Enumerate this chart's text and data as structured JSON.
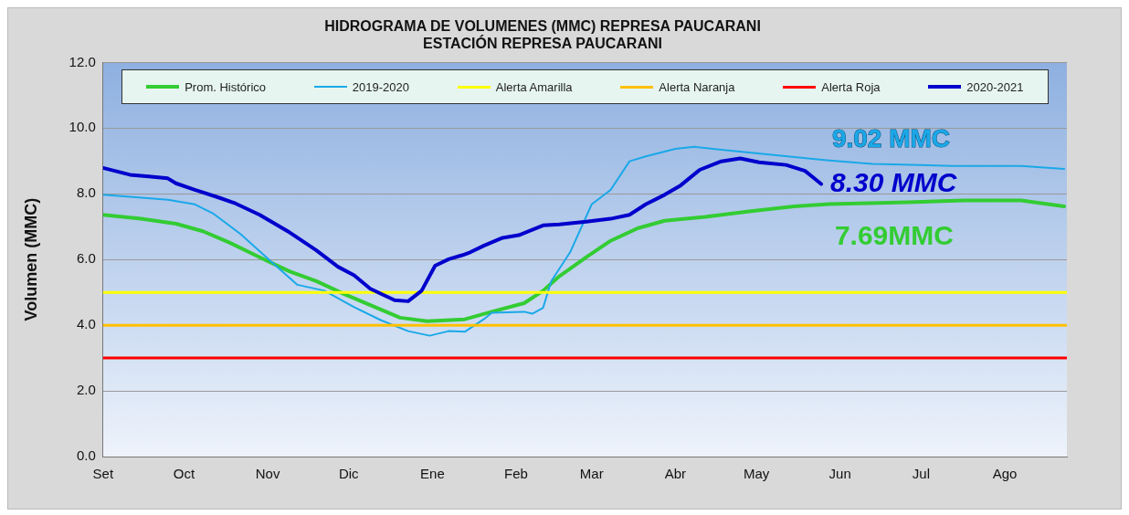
{
  "chart_data": {
    "type": "line",
    "title": "HIDROGRAMA DE VOLUMENES (MMC) REPRESA PAUCARANI\nESTACIÓN REPRESA PAUCARANI",
    "ylabel": "Volumen (MMC)",
    "xlim": [
      "2020-09-01",
      "2021-08-24"
    ],
    "xticks": [
      {
        "value": "2020-09-01",
        "label": "Set"
      },
      {
        "value": "2020-10-01",
        "label": "Oct"
      },
      {
        "value": "2020-11-01",
        "label": "Nov"
      },
      {
        "value": "2020-12-01",
        "label": "Dic"
      },
      {
        "value": "2021-01-01",
        "label": "Ene"
      },
      {
        "value": "2021-02-01",
        "label": "Feb"
      },
      {
        "value": "2021-03-01",
        "label": "Mar"
      },
      {
        "value": "2021-04-01",
        "label": "Abr"
      },
      {
        "value": "2021-05-01",
        "label": "May"
      },
      {
        "value": "2021-06-01",
        "label": "Jun"
      },
      {
        "value": "2021-07-01",
        "label": "Jul"
      },
      {
        "value": "2021-08-01",
        "label": "Ago"
      }
    ],
    "ylim": [
      0,
      12
    ],
    "yticks": [
      {
        "value": 0,
        "label": "0.0"
      },
      {
        "value": 2,
        "label": "2.0"
      },
      {
        "value": 4,
        "label": "4.0"
      },
      {
        "value": 6,
        "label": "6.0"
      },
      {
        "value": 8,
        "label": "8.0"
      },
      {
        "value": 10,
        "label": "10.0"
      },
      {
        "value": 12,
        "label": "12.0"
      }
    ],
    "grid": "y",
    "legend": "top",
    "marker": "none",
    "line_style": "solid",
    "series": [
      {
        "name": "Prom. Histórico",
        "color": "#33cc33",
        "x": [
          "2020-09-01",
          "2020-09-15",
          "2020-09-28",
          "2020-10-08",
          "2020-10-18",
          "2020-10-29",
          "2020-11-09",
          "2020-11-19",
          "2020-11-29",
          "2020-12-09",
          "2020-12-20",
          "2020-12-30",
          "2021-01-13",
          "2021-01-23",
          "2021-02-04",
          "2021-02-11",
          "2021-02-17",
          "2021-02-27",
          "2021-03-08",
          "2021-03-18",
          "2021-03-28",
          "2021-04-12",
          "2021-04-29",
          "2021-05-15",
          "2021-05-28",
          "2021-06-26",
          "2021-07-17",
          "2021-08-07",
          "2021-08-23"
        ],
        "values": [
          7.36,
          7.24,
          7.09,
          6.86,
          6.51,
          6.07,
          5.64,
          5.34,
          4.96,
          4.61,
          4.23,
          4.12,
          4.18,
          4.41,
          4.67,
          5.05,
          5.49,
          6.07,
          6.57,
          6.95,
          7.18,
          7.3,
          7.47,
          7.62,
          7.69,
          7.74,
          7.8,
          7.8,
          7.62
        ],
        "value_labels": [
          null,
          null,
          null,
          null,
          null,
          null,
          null,
          null,
          null,
          null,
          null,
          null,
          null,
          null,
          null,
          null,
          null,
          null,
          null,
          null,
          null,
          null,
          null,
          null,
          "7.69MMC",
          null,
          null,
          null,
          null
        ]
      },
      {
        "name": "2019-2020",
        "color": "#1aa8e8",
        "x": [
          "2020-09-01",
          "2020-09-11",
          "2020-09-25",
          "2020-10-05",
          "2020-10-12",
          "2020-10-22",
          "2020-11-02",
          "2020-11-12",
          "2020-11-22",
          "2020-12-03",
          "2020-12-13",
          "2020-12-23",
          "2020-12-31",
          "2021-01-07",
          "2021-01-13",
          "2021-01-20",
          "2021-01-23",
          "2021-02-04",
          "2021-02-07",
          "2021-02-11",
          "2021-02-14",
          "2021-02-21",
          "2021-03-01",
          "2021-03-08",
          "2021-03-15",
          "2021-03-21",
          "2021-04-01",
          "2021-04-08",
          "2021-04-18",
          "2021-05-05",
          "2021-05-27",
          "2021-06-13",
          "2021-07-13",
          "2021-08-07",
          "2021-08-23"
        ],
        "values": [
          7.97,
          7.91,
          7.82,
          7.68,
          7.39,
          6.77,
          5.96,
          5.23,
          5.05,
          4.55,
          4.15,
          3.82,
          3.68,
          3.82,
          3.8,
          4.18,
          4.38,
          4.41,
          4.35,
          4.53,
          5.34,
          6.22,
          7.68,
          8.12,
          8.99,
          9.14,
          9.37,
          9.43,
          9.34,
          9.2,
          9.02,
          8.91,
          8.85,
          8.85,
          8.76
        ],
        "value_labels": [
          null,
          null,
          null,
          null,
          null,
          null,
          null,
          null,
          null,
          null,
          null,
          null,
          null,
          null,
          null,
          null,
          null,
          null,
          null,
          null,
          null,
          null,
          null,
          null,
          null,
          null,
          null,
          null,
          null,
          null,
          "9.02 MMC",
          null,
          null,
          null,
          null
        ]
      },
      {
        "name": "Alerta Amarilla",
        "color": "#ffff00",
        "x": [
          "2020-09-01",
          "2021-08-24"
        ],
        "values": [
          5,
          5
        ]
      },
      {
        "name": "Alerta Naranja",
        "color": "#ffc000",
        "x": [
          "2020-09-01",
          "2021-08-24"
        ],
        "values": [
          4,
          4
        ]
      },
      {
        "name": "Alerta Roja",
        "color": "#ff0000",
        "x": [
          "2020-09-01",
          "2021-08-24"
        ],
        "values": [
          3,
          3
        ]
      },
      {
        "name": "2020-2021",
        "color": "#0000cc",
        "x": [
          "2020-09-01",
          "2020-09-11",
          "2020-09-18",
          "2020-09-25",
          "2020-09-28",
          "2020-10-05",
          "2020-10-13",
          "2020-10-20",
          "2020-10-29",
          "2020-11-09",
          "2020-11-19",
          "2020-11-27",
          "2020-12-03",
          "2020-12-09",
          "2020-12-18",
          "2020-12-23",
          "2020-12-28",
          "2021-01-02",
          "2021-01-07",
          "2021-01-12",
          "2021-01-15",
          "2021-01-20",
          "2021-01-27",
          "2021-02-02",
          "2021-02-11",
          "2021-02-17",
          "2021-02-27",
          "2021-03-08",
          "2021-03-15",
          "2021-03-21",
          "2021-03-28",
          "2021-04-03",
          "2021-04-10",
          "2021-04-18",
          "2021-04-25",
          "2021-05-02",
          "2021-05-12",
          "2021-05-19",
          "2021-05-22",
          "2021-05-25"
        ],
        "values": [
          8.79,
          8.58,
          8.53,
          8.47,
          8.32,
          8.12,
          7.91,
          7.71,
          7.36,
          6.83,
          6.28,
          5.78,
          5.52,
          5.11,
          4.76,
          4.73,
          5.05,
          5.81,
          6.01,
          6.13,
          6.22,
          6.42,
          6.66,
          6.74,
          7.04,
          7.07,
          7.15,
          7.24,
          7.36,
          7.68,
          7.97,
          8.26,
          8.73,
          8.99,
          9.08,
          8.96,
          8.88,
          8.7,
          8.5,
          8.3
        ],
        "value_labels": [
          null,
          null,
          null,
          null,
          null,
          null,
          null,
          null,
          null,
          null,
          null,
          null,
          null,
          null,
          null,
          null,
          null,
          null,
          null,
          null,
          null,
          null,
          null,
          null,
          null,
          null,
          null,
          null,
          null,
          null,
          null,
          null,
          null,
          null,
          null,
          null,
          null,
          null,
          null,
          "8.30 MMC"
        ]
      }
    ]
  }
}
